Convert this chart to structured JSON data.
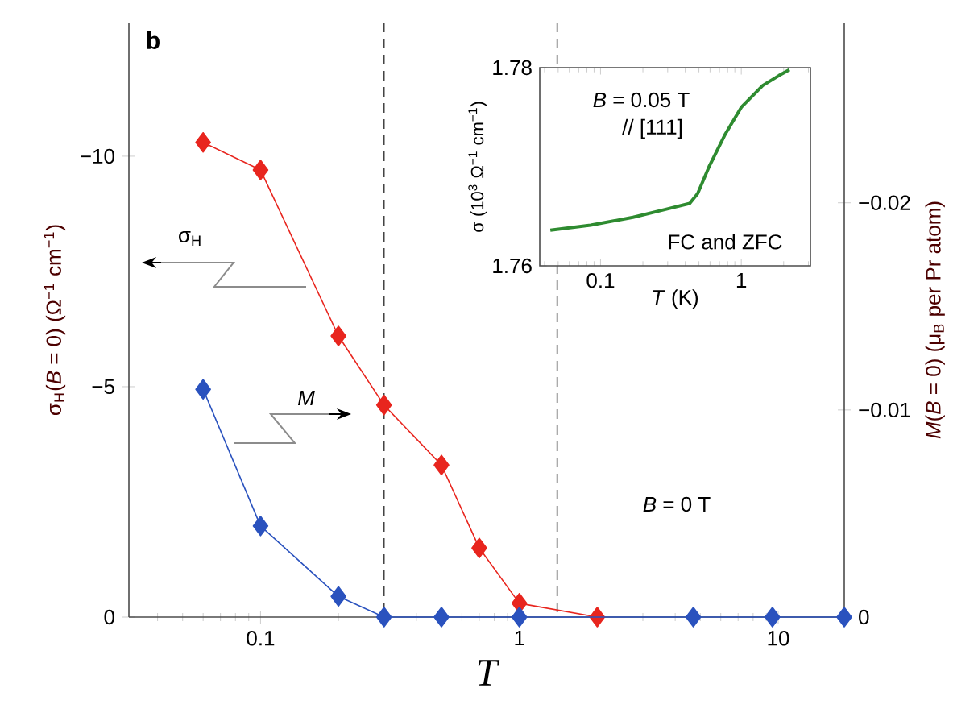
{
  "chart_data": [
    {
      "type": "line",
      "xlabel": "T",
      "ylabel": "σ$_{H}$(*B* = 0) (Ω$^{−1}$ cm$^{−1}$)",
      "y2label": "*M*(*B* = 0) (μ$_{B}$ per Pr atom)",
      "log": "x",
      "marker": "diamond",
      "line_style": "solid",
      "grid": false,
      "xlim": [
        0.031,
        18
      ],
      "xticks": [
        0.1,
        1,
        10
      ],
      "ylim": [
        0,
        -12.9
      ],
      "yticks": [
        0,
        {
          "value": -5,
          "label": "−5"
        },
        {
          "value": -10,
          "label": "−10"
        }
      ],
      "y2lim": [
        0,
        -0.0287
      ],
      "y2ticks": [
        0,
        {
          "value": -0.01,
          "label": "−0.01"
        },
        {
          "value": -0.02,
          "label": "−0.02"
        }
      ],
      "series": [
        {
          "color": "#e8251e",
          "x": [
            0.06,
            0.1,
            0.2,
            0.3,
            0.5,
            0.7,
            1,
            2
          ],
          "values": [
            -10.3,
            -9.7,
            -6.1,
            -4.6,
            -3.3,
            -1.5,
            -0.3,
            0
          ]
        },
        {
          "color": "#2a52be",
          "axis": "y2",
          "x": [
            0.06,
            0.1,
            0.2,
            0.3,
            0.5,
            1,
            4.7,
            9.5,
            18
          ],
          "values": [
            -0.011,
            -0.0044,
            -0.001,
            0,
            0,
            0,
            0,
            0,
            0
          ]
        }
      ],
      "ref_lines": [
        {
          "axis": "x",
          "value": 0.3,
          "color": "#444444",
          "line_style": "dashed"
        },
        {
          "axis": "x",
          "value": 1.4,
          "color": "#444444",
          "line_style": "dashed"
        }
      ],
      "annotations": [
        "**b**",
        "σ$_{H}$",
        "*M*",
        "*B* = 0 T"
      ]
    },
    {
      "type": "line",
      "xlabel": "*T* (K)",
      "ylabel": "σ (10$^{3}$ Ω$^{−1}$ cm$^{−1}$)",
      "log": "x",
      "grid": false,
      "marker": "none",
      "xlim": [
        0.037,
        3.1
      ],
      "xticks": [
        0.1,
        1
      ],
      "ylim": [
        1.76,
        1.78
      ],
      "yticks": [
        1.76,
        1.78
      ],
      "series": [
        {
          "color": "#2e8b30",
          "x": [
            0.044,
            0.085,
            0.17,
            0.29,
            0.43,
            0.49,
            0.59,
            0.77,
            1.0,
            1.42,
            1.85,
            2.2
          ],
          "values": [
            1.7636,
            1.7641,
            1.7649,
            1.7657,
            1.7663,
            1.7673,
            1.77,
            1.7733,
            1.776,
            1.7782,
            1.7792,
            1.7798
          ]
        }
      ],
      "annotations": [
        "*B* = 0.05 T",
        "// [111]",
        "FC and ZFC"
      ]
    }
  ]
}
